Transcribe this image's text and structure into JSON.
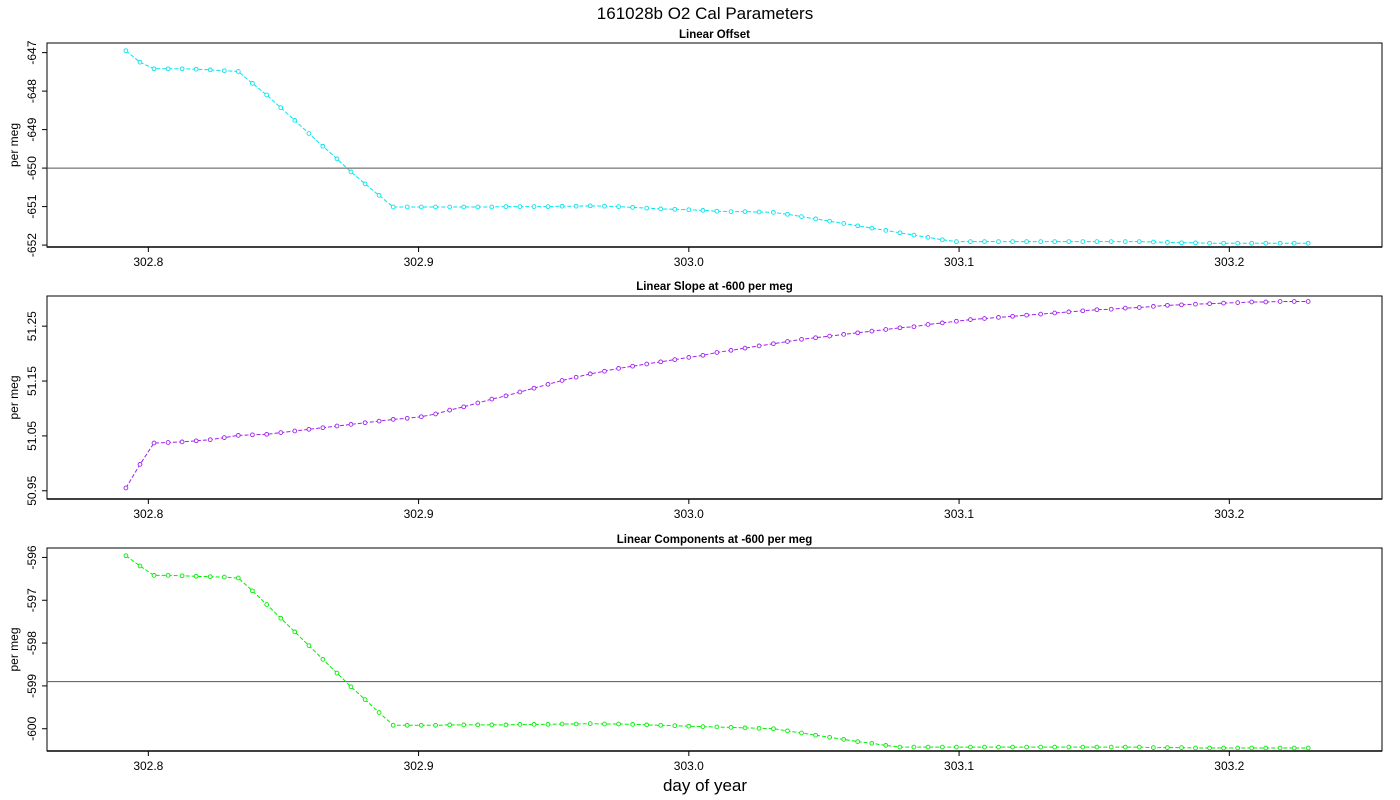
{
  "title": "161028b   O2 Cal Parameters",
  "xlabel": "day of year",
  "chart_data": [
    {
      "type": "line",
      "title": "Linear Offset",
      "ylabel": "per meg",
      "color": "#00e5ee",
      "ylim": [
        -652.05,
        -646.75
      ],
      "yticks": [
        "-647",
        "-648",
        "-649",
        "-650",
        "-651",
        "-652"
      ],
      "ytick_values": [
        -647,
        -648,
        -649,
        -650,
        -651,
        -652
      ],
      "hline": -650,
      "xlim": [
        302.7625,
        303.2565
      ],
      "xticks": [
        "302.8",
        "302.9",
        "303.0",
        "303.1",
        "303.2"
      ],
      "xtick_values": [
        302.8,
        302.9,
        303.0,
        303.1,
        303.2
      ],
      "x": [
        302.7917,
        302.7969,
        302.8021,
        302.8073,
        302.8125,
        302.8177,
        302.8229,
        302.8281,
        302.8333,
        302.8385,
        302.8438,
        302.849,
        302.8542,
        302.8594,
        302.8646,
        302.8698,
        302.875,
        302.8802,
        302.8854,
        302.8906,
        302.8958,
        302.901,
        302.9063,
        302.9115,
        302.9167,
        302.9219,
        302.9271,
        302.9323,
        302.9375,
        302.9427,
        302.9479,
        302.9531,
        302.9583,
        302.9635,
        302.9688,
        302.974,
        302.9792,
        302.9844,
        302.9896,
        302.9948,
        303.0,
        303.0052,
        303.0104,
        303.0156,
        303.0208,
        303.026,
        303.0313,
        303.0365,
        303.0417,
        303.0469,
        303.0521,
        303.0573,
        303.0625,
        303.0677,
        303.0729,
        303.0781,
        303.0833,
        303.0885,
        303.0938,
        303.099,
        303.1042,
        303.1094,
        303.1146,
        303.1198,
        303.125,
        303.1302,
        303.1354,
        303.1406,
        303.1458,
        303.151,
        303.1563,
        303.1615,
        303.1667,
        303.1719,
        303.1771,
        303.1823,
        303.1875,
        303.1927,
        303.1979,
        303.2031,
        303.2083,
        303.2135,
        303.2188,
        303.224,
        303.2292
      ],
      "y": [
        -646.95,
        -647.25,
        -647.42,
        -647.42,
        -647.42,
        -647.43,
        -647.45,
        -647.47,
        -647.49,
        -647.8,
        -648.1,
        -648.43,
        -648.76,
        -649.1,
        -649.43,
        -649.76,
        -650.1,
        -650.41,
        -650.71,
        -651.01,
        -651.01,
        -651.01,
        -651.01,
        -651.01,
        -651.01,
        -651.01,
        -651.01,
        -651.0,
        -651.0,
        -651.0,
        -651.0,
        -650.99,
        -650.99,
        -650.98,
        -650.99,
        -651.0,
        -651.02,
        -651.04,
        -651.06,
        -651.07,
        -651.08,
        -651.1,
        -651.12,
        -651.13,
        -651.13,
        -651.14,
        -651.15,
        -651.2,
        -651.26,
        -651.32,
        -651.38,
        -651.44,
        -651.5,
        -651.56,
        -651.62,
        -651.68,
        -651.74,
        -651.8,
        -651.86,
        -651.91,
        -651.91,
        -651.91,
        -651.91,
        -651.91,
        -651.91,
        -651.91,
        -651.91,
        -651.91,
        -651.91,
        -651.91,
        -651.91,
        -651.91,
        -651.91,
        -651.92,
        -651.93,
        -651.94,
        -651.94,
        -651.95,
        -651.95,
        -651.95,
        -651.95,
        -651.95,
        -651.95,
        -651.95,
        -651.95
      ]
    },
    {
      "type": "line",
      "title": "Linear Slope at -600 per meg",
      "ylabel": "per meg",
      "color": "#a020f0",
      "ylim": [
        50.935,
        51.305
      ],
      "yticks": [
        "50.95",
        "51.05",
        "51.15",
        "51.25"
      ],
      "ytick_values": [
        50.95,
        51.05,
        51.15,
        51.25
      ],
      "hline": null,
      "xlim": [
        302.7625,
        303.2565
      ],
      "xticks": [
        "302.8",
        "302.9",
        "303.0",
        "303.1",
        "303.2"
      ],
      "xtick_values": [
        302.8,
        302.9,
        303.0,
        303.1,
        303.2
      ],
      "x": [
        302.7917,
        302.7969,
        302.8021,
        302.8073,
        302.8125,
        302.8177,
        302.8229,
        302.8281,
        302.8333,
        302.8385,
        302.8438,
        302.849,
        302.8542,
        302.8594,
        302.8646,
        302.8698,
        302.875,
        302.8802,
        302.8854,
        302.8906,
        302.8958,
        302.901,
        302.9063,
        302.9115,
        302.9167,
        302.9219,
        302.9271,
        302.9323,
        302.9375,
        302.9427,
        302.9479,
        302.9531,
        302.9583,
        302.9635,
        302.9688,
        302.974,
        302.9792,
        302.9844,
        302.9896,
        302.9948,
        303.0,
        303.0052,
        303.0104,
        303.0156,
        303.0208,
        303.026,
        303.0313,
        303.0365,
        303.0417,
        303.0469,
        303.0521,
        303.0573,
        303.0625,
        303.0677,
        303.0729,
        303.0781,
        303.0833,
        303.0885,
        303.0938,
        303.099,
        303.1042,
        303.1094,
        303.1146,
        303.1198,
        303.125,
        303.1302,
        303.1354,
        303.1406,
        303.1458,
        303.151,
        303.1563,
        303.1615,
        303.1667,
        303.1719,
        303.1771,
        303.1823,
        303.1875,
        303.1927,
        303.1979,
        303.2031,
        303.2083,
        303.2135,
        303.2188,
        303.224,
        303.2292
      ],
      "y": [
        50.955,
        50.998,
        51.037,
        51.038,
        51.039,
        51.041,
        51.043,
        51.047,
        51.051,
        51.052,
        51.053,
        51.056,
        51.059,
        51.062,
        51.065,
        51.068,
        51.071,
        51.074,
        51.077,
        51.08,
        51.082,
        51.085,
        51.09,
        51.097,
        51.103,
        51.11,
        51.117,
        51.123,
        51.13,
        51.137,
        51.144,
        51.151,
        51.157,
        51.163,
        51.168,
        51.173,
        51.177,
        51.181,
        51.185,
        51.189,
        51.193,
        51.197,
        51.202,
        51.206,
        51.21,
        51.214,
        51.218,
        51.222,
        51.226,
        51.229,
        51.232,
        51.235,
        51.238,
        51.241,
        51.244,
        51.247,
        51.249,
        51.253,
        51.256,
        51.259,
        51.262,
        51.264,
        51.266,
        51.268,
        51.27,
        51.272,
        51.274,
        51.276,
        51.278,
        51.28,
        51.281,
        51.283,
        51.284,
        51.286,
        51.288,
        51.289,
        51.29,
        51.291,
        51.292,
        51.293,
        51.294,
        51.294,
        51.295,
        51.295,
        51.295
      ]
    },
    {
      "type": "line",
      "title": "Linear Components at -600 per meg",
      "ylabel": "per meg",
      "color": "#00ee00",
      "ylim": [
        -600.52,
        -595.78
      ],
      "yticks": [
        "-596",
        "-597",
        "-598",
        "-599",
        "-600"
      ],
      "ytick_values": [
        -596,
        -597,
        -598,
        -599,
        -600
      ],
      "hline": -598.9,
      "xlim": [
        302.7625,
        303.2565
      ],
      "xticks": [
        "302.8",
        "302.9",
        "303.0",
        "303.1",
        "303.2"
      ],
      "xtick_values": [
        302.8,
        302.9,
        303.0,
        303.1,
        303.2
      ],
      "x": [
        302.7917,
        302.7969,
        302.8021,
        302.8073,
        302.8125,
        302.8177,
        302.8229,
        302.8281,
        302.8333,
        302.8385,
        302.8438,
        302.849,
        302.8542,
        302.8594,
        302.8646,
        302.8698,
        302.875,
        302.8802,
        302.8854,
        302.8906,
        302.8958,
        302.901,
        302.9063,
        302.9115,
        302.9167,
        302.9219,
        302.9271,
        302.9323,
        302.9375,
        302.9427,
        302.9479,
        302.9531,
        302.9583,
        302.9635,
        302.9688,
        302.974,
        302.9792,
        302.9844,
        302.9896,
        302.9948,
        303.0,
        303.0052,
        303.0104,
        303.0156,
        303.0208,
        303.026,
        303.0313,
        303.0365,
        303.0417,
        303.0469,
        303.0521,
        303.0573,
        303.0625,
        303.0677,
        303.0729,
        303.0781,
        303.0833,
        303.0885,
        303.0938,
        303.099,
        303.1042,
        303.1094,
        303.1146,
        303.1198,
        303.125,
        303.1302,
        303.1354,
        303.1406,
        303.1458,
        303.151,
        303.1563,
        303.1615,
        303.1667,
        303.1719,
        303.1771,
        303.1823,
        303.1875,
        303.1927,
        303.1979,
        303.2031,
        303.2083,
        303.2135,
        303.2188,
        303.224,
        303.2292
      ],
      "y": [
        -595.96,
        -596.2,
        -596.42,
        -596.42,
        -596.43,
        -596.44,
        -596.45,
        -596.46,
        -596.48,
        -596.78,
        -597.1,
        -597.42,
        -597.74,
        -598.06,
        -598.38,
        -598.7,
        -599.02,
        -599.32,
        -599.62,
        -599.92,
        -599.92,
        -599.92,
        -599.92,
        -599.91,
        -599.91,
        -599.91,
        -599.91,
        -599.91,
        -599.9,
        -599.9,
        -599.9,
        -599.89,
        -599.89,
        -599.88,
        -599.89,
        -599.89,
        -599.9,
        -599.91,
        -599.92,
        -599.93,
        -599.94,
        -599.95,
        -599.96,
        -599.97,
        -599.98,
        -599.99,
        -600.0,
        -600.05,
        -600.1,
        -600.15,
        -600.2,
        -600.25,
        -600.3,
        -600.34,
        -600.39,
        -600.43,
        -600.43,
        -600.43,
        -600.43,
        -600.43,
        -600.43,
        -600.43,
        -600.43,
        -600.43,
        -600.43,
        -600.43,
        -600.43,
        -600.43,
        -600.43,
        -600.43,
        -600.43,
        -600.43,
        -600.43,
        -600.44,
        -600.44,
        -600.44,
        -600.45,
        -600.45,
        -600.45,
        -600.45,
        -600.45,
        -600.45,
        -600.45,
        -600.45,
        -600.45
      ]
    }
  ]
}
